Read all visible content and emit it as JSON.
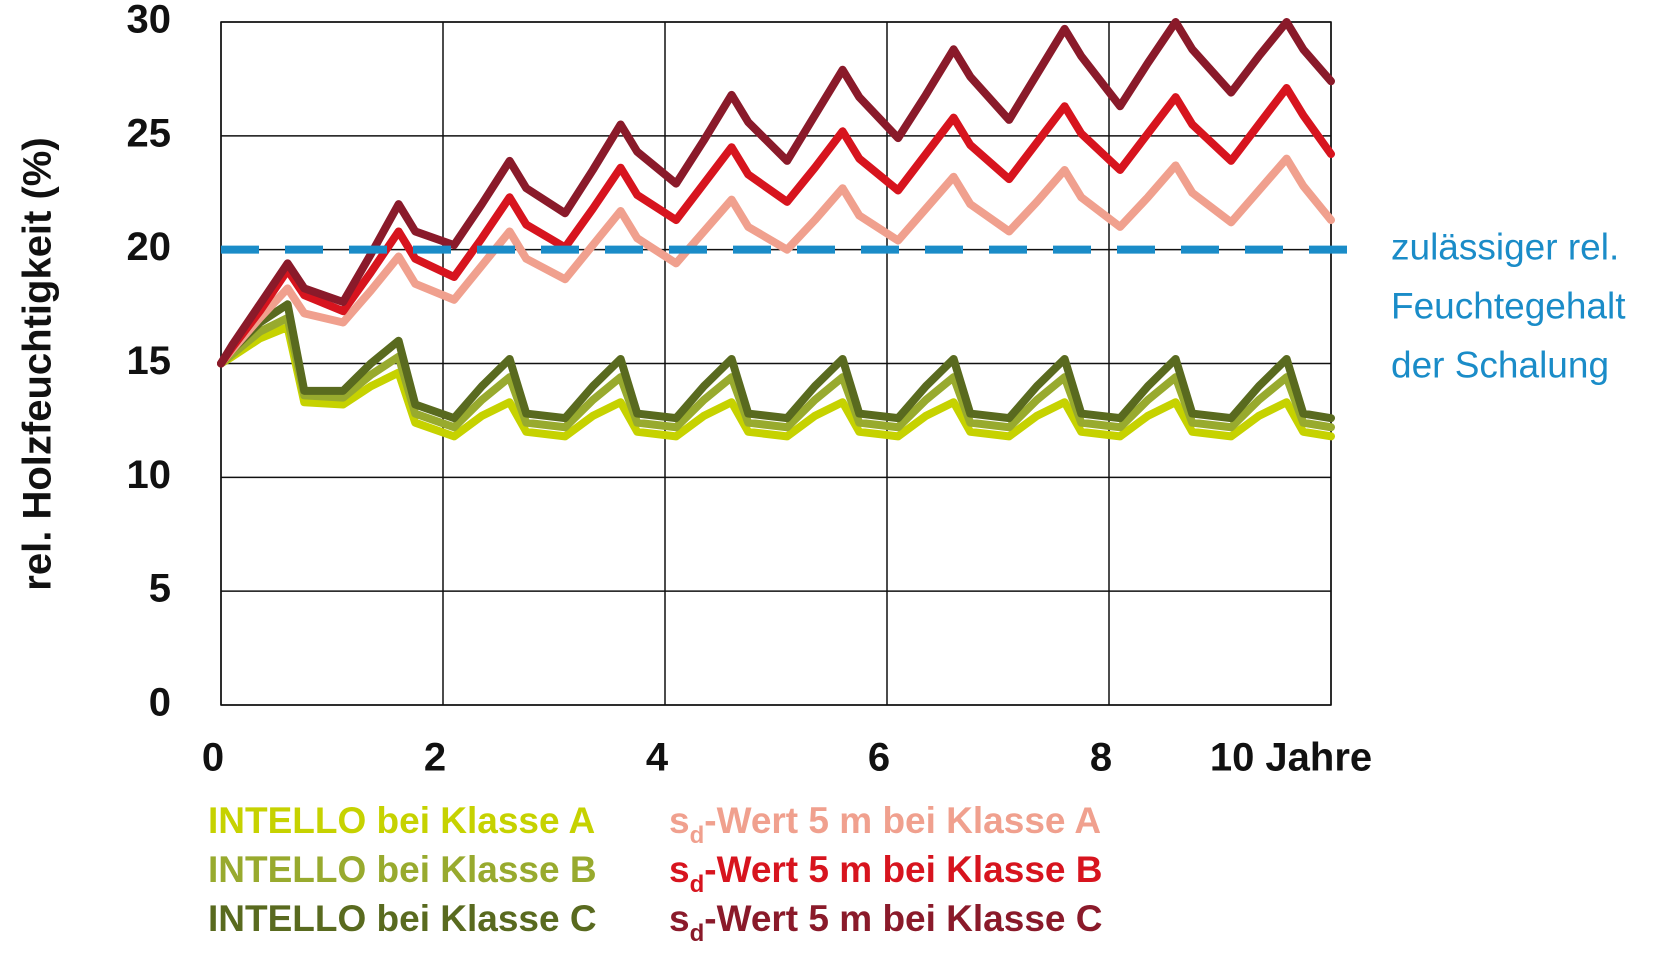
{
  "chart_data": {
    "type": "line",
    "ylabel": "rel. Holzfeuchtigkeit (%)",
    "x": [
      0,
      0.1,
      0.35,
      0.6,
      0.75,
      1.1,
      1.35,
      1.6,
      1.75,
      2.1,
      2.35,
      2.6,
      2.75,
      3.1,
      3.35,
      3.6,
      3.75,
      4.1,
      4.35,
      4.6,
      4.75,
      5.1,
      5.35,
      5.6,
      5.75,
      6.1,
      6.35,
      6.6,
      6.75,
      7.1,
      7.35,
      7.6,
      7.75,
      8.1,
      8.35,
      8.6,
      8.75,
      9.1,
      9.35,
      9.6,
      9.75,
      10
    ],
    "series": [
      {
        "name": "INTELLO bei Klasse A",
        "color": "#c6d200",
        "values": [
          15.0,
          15.3,
          16.1,
          16.6,
          13.3,
          13.2,
          14.0,
          14.6,
          12.4,
          11.8,
          12.7,
          13.3,
          12.0,
          11.8,
          12.7,
          13.3,
          12.0,
          11.8,
          12.7,
          13.3,
          12.0,
          11.8,
          12.7,
          13.3,
          12.0,
          11.8,
          12.7,
          13.3,
          12.0,
          11.8,
          12.7,
          13.3,
          12.0,
          11.8,
          12.7,
          13.3,
          12.0,
          11.8,
          12.7,
          13.3,
          12.0,
          11.8
        ]
      },
      {
        "name": "INTELLO bei Klasse B",
        "color": "#98aa2e",
        "values": [
          15.0,
          15.4,
          16.4,
          17.0,
          13.6,
          13.5,
          14.5,
          15.3,
          12.8,
          12.2,
          13.4,
          14.4,
          12.4,
          12.2,
          13.4,
          14.4,
          12.4,
          12.2,
          13.4,
          14.4,
          12.4,
          12.2,
          13.4,
          14.4,
          12.4,
          12.2,
          13.4,
          14.4,
          12.4,
          12.2,
          13.4,
          14.4,
          12.4,
          12.2,
          13.4,
          14.4,
          12.4,
          12.2,
          13.4,
          14.4,
          12.4,
          12.2
        ]
      },
      {
        "name": "INTELLO bei Klasse C",
        "color": "#596a1f",
        "values": [
          15.0,
          15.6,
          16.8,
          17.6,
          13.8,
          13.8,
          15.0,
          16.0,
          13.2,
          12.6,
          14.0,
          15.2,
          12.8,
          12.6,
          14.0,
          15.2,
          12.8,
          12.6,
          14.0,
          15.2,
          12.8,
          12.6,
          14.0,
          15.2,
          12.8,
          12.6,
          14.0,
          15.2,
          12.8,
          12.6,
          14.0,
          15.2,
          12.8,
          12.6,
          14.0,
          15.2,
          12.8,
          12.6,
          14.0,
          15.2,
          12.8,
          12.6
        ]
      },
      {
        "name": "sd-Wert 5 m bei Klasse A",
        "color": "#f0a08e",
        "values": [
          15.0,
          15.6,
          17.0,
          18.3,
          17.2,
          16.8,
          18.2,
          19.7,
          18.5,
          17.8,
          19.3,
          20.8,
          19.6,
          18.7,
          20.2,
          21.7,
          20.5,
          19.4,
          20.8,
          22.2,
          21.0,
          20.0,
          21.3,
          22.7,
          21.5,
          20.4,
          21.8,
          23.2,
          22.0,
          20.8,
          22.1,
          23.5,
          22.3,
          21.0,
          22.3,
          23.7,
          22.5,
          21.2,
          22.6,
          24.0,
          22.8,
          21.3
        ]
      },
      {
        "name": "sd-Wert 5 m bei Klasse B",
        "color": "#d7141e",
        "values": [
          15.0,
          15.7,
          17.3,
          19.1,
          18.0,
          17.3,
          19.0,
          20.8,
          19.6,
          18.8,
          20.5,
          22.3,
          21.1,
          20.1,
          21.8,
          23.6,
          22.4,
          21.3,
          22.9,
          24.5,
          23.3,
          22.1,
          23.6,
          25.2,
          24.0,
          22.6,
          24.2,
          25.8,
          24.6,
          23.1,
          24.7,
          26.3,
          25.1,
          23.5,
          25.1,
          26.7,
          25.5,
          23.9,
          25.5,
          27.1,
          25.9,
          24.2
        ]
      },
      {
        "name": "sd-Wert 5 m bei Klasse C",
        "color": "#8a1a2a",
        "values": [
          15.0,
          15.8,
          17.6,
          19.4,
          18.3,
          17.7,
          19.8,
          22.0,
          20.8,
          20.2,
          22.0,
          23.9,
          22.7,
          21.6,
          23.5,
          25.5,
          24.3,
          22.9,
          24.8,
          26.8,
          25.6,
          23.9,
          25.9,
          27.9,
          26.7,
          24.9,
          26.8,
          28.8,
          27.6,
          25.7,
          27.7,
          29.7,
          28.5,
          26.3,
          28.2,
          30.0,
          28.8,
          26.9,
          28.5,
          30.0,
          28.8,
          27.4
        ]
      }
    ],
    "xlim": [
      0,
      10
    ],
    "xticks": [
      0,
      2,
      4,
      6,
      8,
      {
        "value": 10,
        "label": "10 Jahre"
      }
    ],
    "ylim": [
      0,
      30
    ],
    "yticks": [
      0,
      5,
      10,
      15,
      20,
      25,
      30
    ],
    "grid": true,
    "reference_line": {
      "value": 20,
      "color": "#1a8cc8",
      "label": [
        "zulässiger rel.",
        "Feuchtegehalt",
        "der Schalung"
      ]
    }
  }
}
